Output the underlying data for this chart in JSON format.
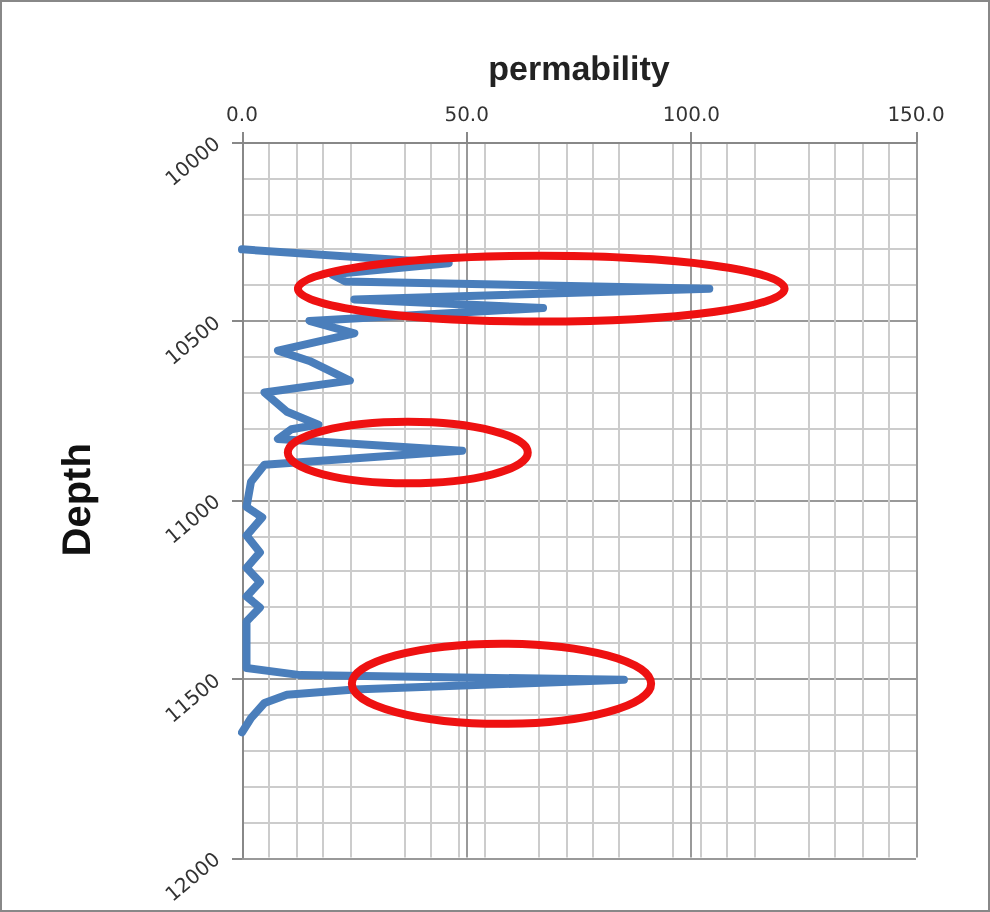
{
  "chart_data": {
    "type": "line",
    "xlabel": "permability",
    "ylabel": "Depth",
    "xlim": [
      0,
      150
    ],
    "xticks": [
      {
        "value": 0,
        "label": "0.0"
      },
      {
        "value": 50,
        "label": "50.0"
      },
      {
        "value": 100,
        "label": "100.0"
      },
      {
        "value": 150,
        "label": "150.0"
      }
    ],
    "ylim": [
      12000,
      10000
    ],
    "yticks": [
      10000,
      10500,
      11000,
      11500,
      12000
    ],
    "grid": true,
    "series": [
      {
        "color": "#4a7ebb",
        "x": [
          0,
          46,
          20,
          23,
          104,
          25,
          67,
          15,
          25,
          8,
          15,
          24,
          5,
          10,
          17,
          11,
          8,
          49,
          5,
          2,
          1,
          4.5,
          1,
          4,
          1,
          4,
          1,
          4,
          1,
          1,
          13,
          85,
          25,
          10,
          5,
          2,
          0
        ],
        "values": [
          10300,
          10339,
          10370,
          10390,
          10410,
          10440,
          10464,
          10500,
          10535,
          10583,
          10612,
          10667,
          10700,
          10754,
          10790,
          10803,
          10830,
          10863,
          10902,
          10950,
          11020,
          11049,
          11100,
          11147,
          11190,
          11230,
          11270,
          11301,
          11340,
          11470,
          11490,
          11503,
          11530,
          11545,
          11568,
          11610,
          11650
        ]
      }
    ]
  }
}
